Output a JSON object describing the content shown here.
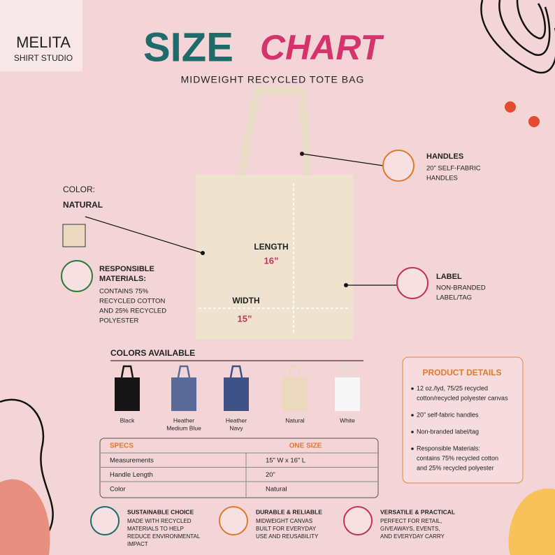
{
  "brand": {
    "name": "MELITA",
    "sub": "SHIRT STUDIO"
  },
  "header": {
    "title_a": "SIZE",
    "title_b": "CHART",
    "subtitle": "MIDWEIGHT RECYCLED TOTE BAG"
  },
  "handles": {
    "title": "HANDLES",
    "lines": [
      "20” SELF-FABRIC",
      "HANDLES"
    ]
  },
  "label": {
    "title": "LABEL",
    "lines": [
      "NON-BRANDED",
      "LABEL/TAG"
    ]
  },
  "color": {
    "label": "COLOR:",
    "value": "NATURAL"
  },
  "materials": {
    "title": [
      "RESPONSIBLE",
      "MATERIALS:"
    ],
    "lines": [
      "CONTAINS 75%",
      "RECYCLED COTTON",
      "AND 25% RECYCLED",
      "POLYESTER"
    ]
  },
  "length": {
    "label": "LENGTH",
    "value": "16”"
  },
  "width": {
    "label": "WIDTH",
    "value": "15”"
  },
  "colors": {
    "title": "COLORS AVAILABLE",
    "items": [
      {
        "name": [
          "Black"
        ],
        "color": "#151515"
      },
      {
        "name": [
          "Heather",
          "Medium Blue"
        ],
        "color": "#5a6a98"
      },
      {
        "name": [
          "Heather",
          "Navy"
        ],
        "color": "#3f5285"
      },
      {
        "name": [
          "Natural"
        ],
        "color": "#ead8bf"
      },
      {
        "name": [
          "White"
        ],
        "color": "#f7f7f7"
      }
    ]
  },
  "specs": {
    "header": [
      "SPECS",
      "ONE SIZE"
    ],
    "rows": [
      [
        "Measurements",
        "15” W x 16” L"
      ],
      [
        "Handle Length",
        "20”"
      ],
      [
        "Color",
        "Natural"
      ]
    ]
  },
  "details": {
    "title": "PRODUCT DETAILS",
    "items": [
      [
        "12 oz./lyd, 75/25 recycled",
        "cotton/recycled polyester canvas"
      ],
      [
        "20” self-fabric handles"
      ],
      [
        "Non-branded label/tag"
      ],
      [
        "Responsible Materials:",
        "contains 75% recycled cotton",
        "and 25% recycled polyester"
      ]
    ]
  },
  "features": [
    {
      "title": "SUSTAINABLE CHOICE",
      "lines": [
        "MADE WITH RECYCLED",
        "MATERIALS TO HELP",
        "REDUCE ENVIRONMENTAL",
        "IMPACT"
      ]
    },
    {
      "title": "DURABLE & RELIABLE",
      "lines": [
        "MIDWEIGHT CANVAS",
        "BUILT FOR EVERYDAY",
        "USE AND REUSABILITY"
      ]
    },
    {
      "title": "VERSATILE & PRACTICAL",
      "lines": [
        "PERFECT FOR RETAIL,",
        "GIVEAWAYS, EVENTS,",
        "AND EVERYDAY CARRY"
      ]
    }
  ]
}
